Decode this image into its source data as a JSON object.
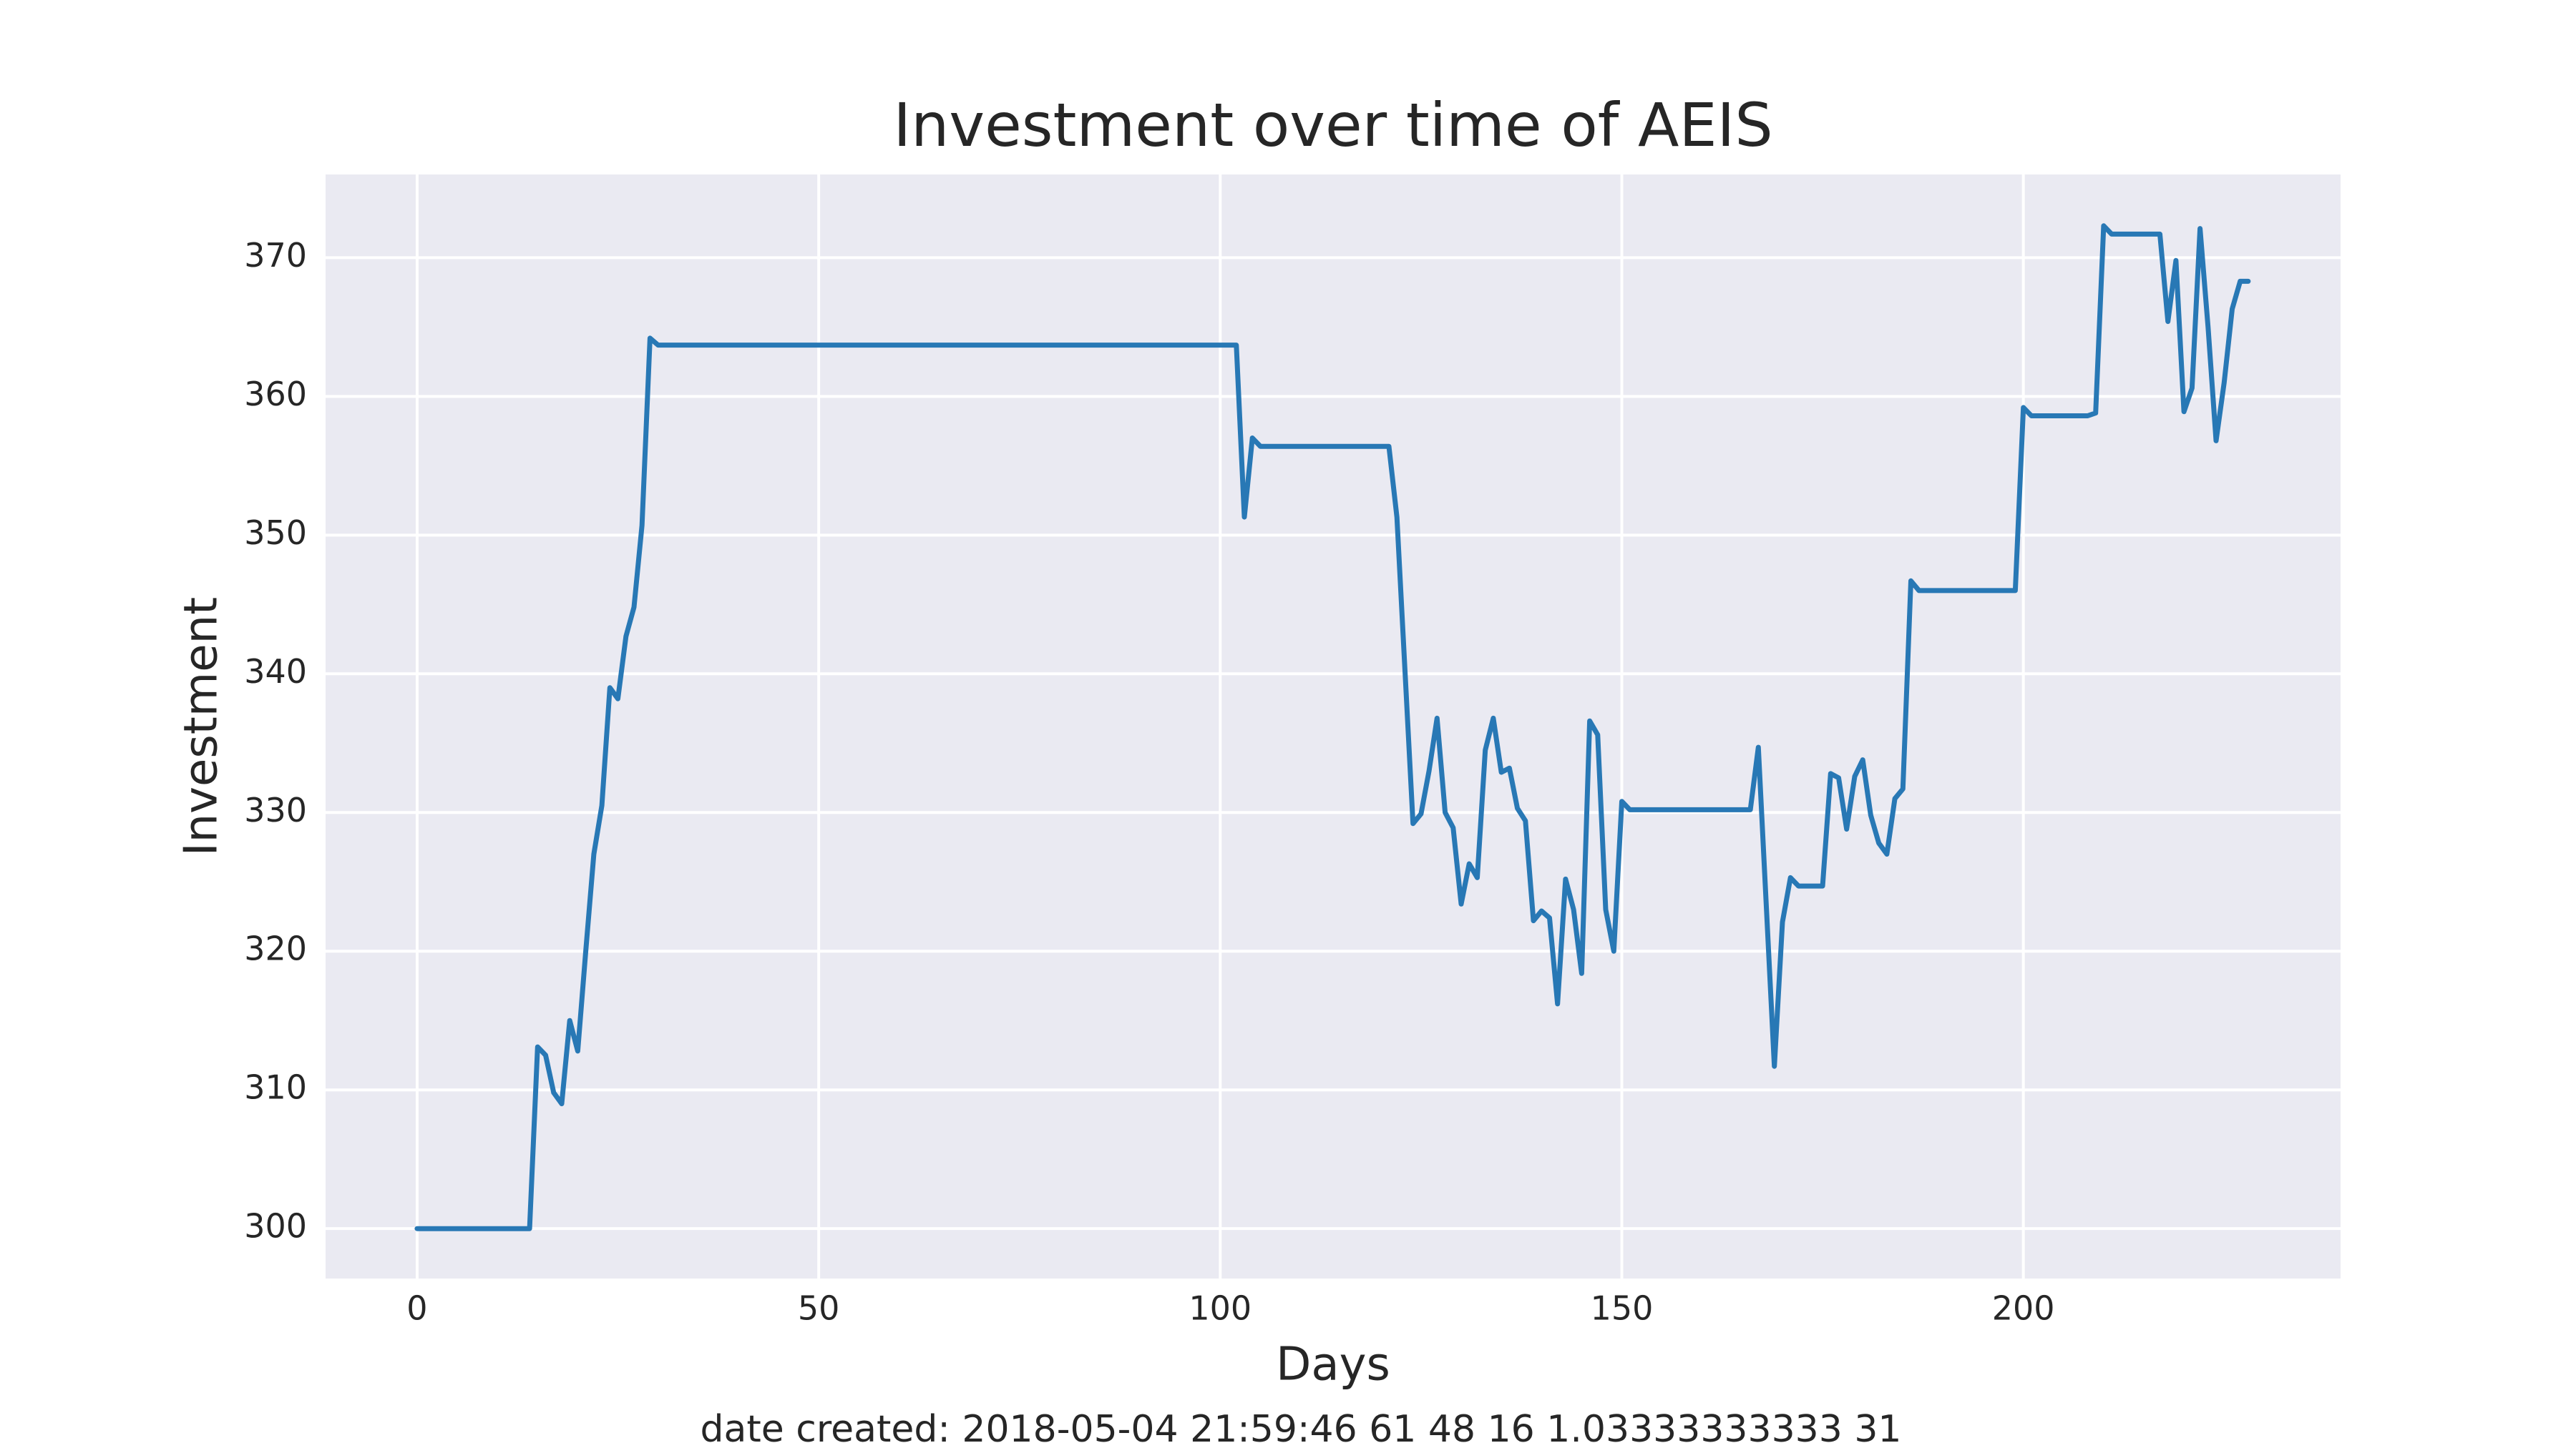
{
  "chart_data": {
    "type": "line",
    "title": "Investment over time of AEIS",
    "x_label": "Days",
    "y_label": "Investment",
    "footer": "date created: 2018-05-04 21:59:46 61 48 16 1.03333333333 31",
    "color": "#2878b5",
    "grid": true,
    "xlim": [
      -11.4,
      239.5
    ],
    "ylim": [
      296.4,
      376
    ],
    "xticks": [
      0,
      50,
      100,
      150,
      200
    ],
    "yticks": [
      300,
      310,
      320,
      330,
      340,
      350,
      360,
      370
    ],
    "x": [
      0,
      14,
      15,
      16,
      17,
      18,
      19,
      20,
      21,
      22,
      23,
      24,
      25,
      26,
      27,
      28,
      29,
      30,
      102,
      103,
      104,
      105,
      121,
      122,
      124,
      125,
      126,
      127,
      128,
      129,
      130,
      131,
      132,
      133,
      134,
      135,
      136,
      137,
      138,
      139,
      140,
      141,
      142,
      143,
      144,
      145,
      146,
      147,
      148,
      149,
      150,
      151,
      166,
      167,
      169,
      170,
      171,
      172,
      175,
      176,
      177,
      178,
      179,
      180,
      181,
      182,
      183,
      184,
      185,
      186,
      187,
      199,
      200,
      201,
      208,
      209,
      210,
      211,
      217,
      218,
      219,
      220,
      221,
      222,
      223,
      224,
      225,
      226,
      227,
      228
    ],
    "values": [
      300,
      300,
      313.1,
      312.5,
      309.8,
      309,
      315,
      312.8,
      320,
      327,
      330.5,
      339,
      338.2,
      342.7,
      344.8,
      350.7,
      364.2,
      363.7,
      363.7,
      351.3,
      357,
      356.4,
      356.4,
      351.3,
      329.2,
      329.9,
      333,
      336.8,
      330,
      328.9,
      323.4,
      326.3,
      325.3,
      334.5,
      336.8,
      332.9,
      333.2,
      330.3,
      329.4,
      322.2,
      322.9,
      322.4,
      316.2,
      325.2,
      323,
      318.4,
      336.6,
      335.6,
      323,
      320,
      330.8,
      330.2,
      330.2,
      334.7,
      311.7,
      322.1,
      325.3,
      324.7,
      324.7,
      332.8,
      332.5,
      328.8,
      332.6,
      333.8,
      329.8,
      327.8,
      327,
      331,
      331.7,
      346.7,
      346,
      346,
      359.2,
      358.6,
      358.6,
      358.8,
      372.3,
      371.7,
      371.7,
      365.4,
      369.8,
      358.9,
      360.6,
      372.1,
      365,
      356.8,
      361,
      366.3,
      368.3,
      368.3
    ]
  }
}
